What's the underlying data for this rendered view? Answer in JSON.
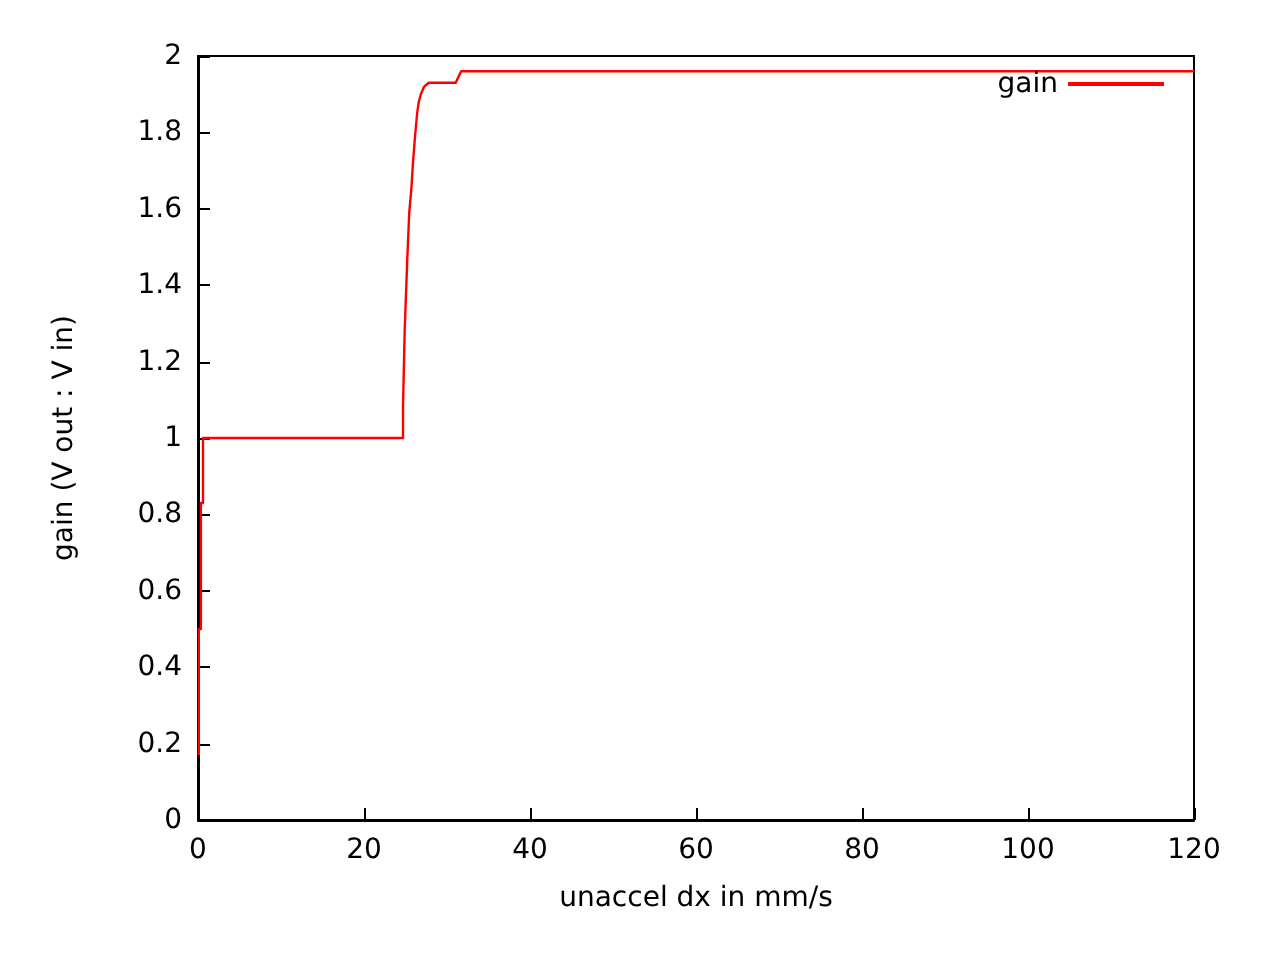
{
  "chart_data": {
    "type": "line",
    "xlabel": "unaccel dx in mm/s",
    "ylabel": "gain (V out : V in)",
    "xlim": [
      0,
      120
    ],
    "xticks": [
      0,
      20,
      40,
      60,
      80,
      100,
      120
    ],
    "ylim": [
      0,
      2
    ],
    "yticks": [
      0,
      0.2,
      0.4,
      0.6,
      0.8,
      1,
      1.2,
      1.4,
      1.6,
      1.8,
      2
    ],
    "grid": false,
    "legend": "top right",
    "line_style": "solid",
    "marker": "none",
    "series": [
      {
        "name": "gain",
        "color": "#ff0000",
        "x": [
          0.1,
          0.1,
          0.35,
          0.35,
          0.6,
          0.6,
          24.7,
          24.7,
          24.9,
          25.2,
          25.45,
          25.7,
          25.9,
          26.15,
          26.4,
          26.6,
          26.85,
          27.25,
          27.8,
          31.05,
          31.7,
          120
        ],
        "values": [
          0.17,
          0.5,
          0.5,
          0.83,
          0.83,
          1,
          1,
          1.08,
          1.28,
          1.46,
          1.59,
          1.65,
          1.72,
          1.79,
          1.85,
          1.88,
          1.9,
          1.92,
          1.93,
          1.93,
          1.96,
          1.96
        ]
      }
    ]
  }
}
